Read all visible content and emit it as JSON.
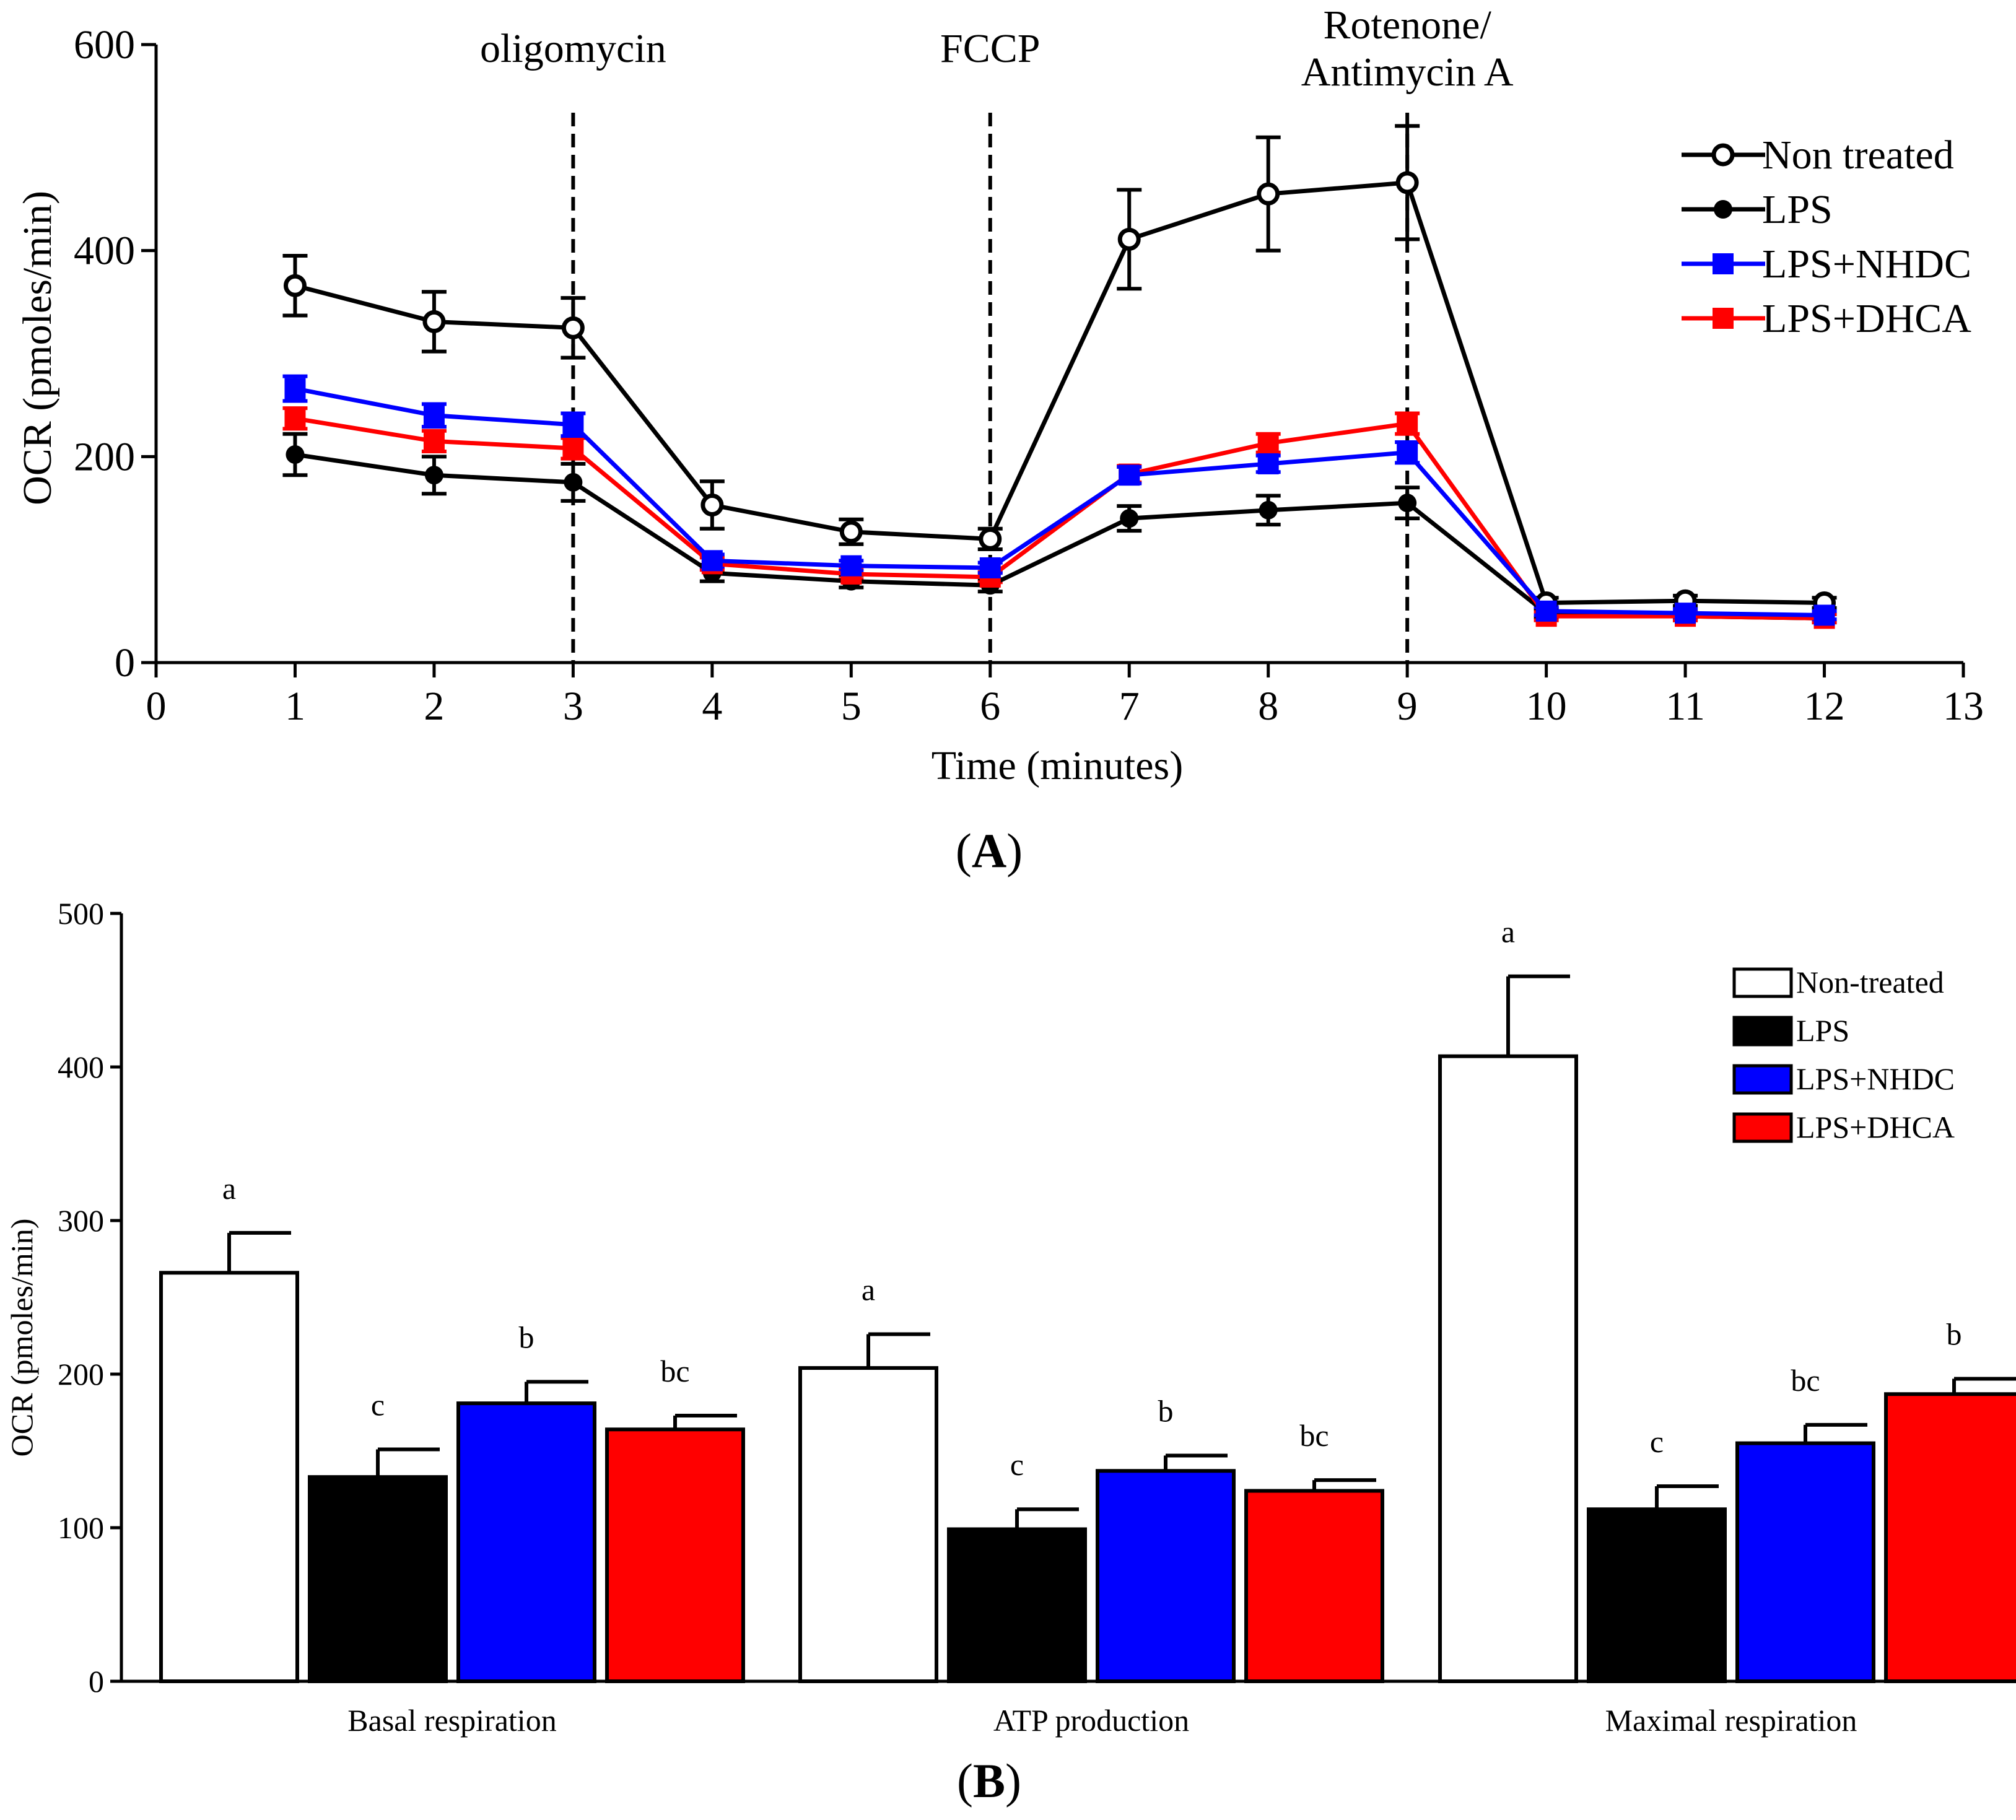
{
  "chart_data": [
    {
      "panel": "(A)",
      "panel_label_open": "(",
      "panel_label_letter": "A",
      "panel_label_close": ")",
      "type": "line",
      "xlabel": "Time (minutes)",
      "ylabel": "OCR (pmoles/min)",
      "xlim": [
        0,
        13
      ],
      "ylim": [
        0,
        600
      ],
      "x_ticks": [
        0,
        1,
        2,
        3,
        4,
        5,
        6,
        7,
        8,
        9,
        10,
        11,
        12,
        13
      ],
      "y_ticks": [
        0,
        200,
        400,
        600
      ],
      "legend_position": "top-right",
      "injections": [
        {
          "x": 3,
          "label_lines": [
            "oligomycin"
          ]
        },
        {
          "x": 6,
          "label_lines": [
            "FCCP"
          ]
        },
        {
          "x": 9,
          "label_lines": [
            "Rotenone/",
            "Antimycin A"
          ]
        }
      ],
      "x": [
        1,
        2,
        3,
        4,
        5,
        6,
        7,
        8,
        9,
        10,
        11,
        12
      ],
      "series": [
        {
          "name": "Non treated",
          "color": "#000000",
          "marker": "open-circle",
          "values": [
            366,
            331,
            325,
            153,
            127,
            120,
            411,
            455,
            466,
            58,
            60,
            58
          ],
          "errors": [
            29,
            29,
            29,
            23,
            12,
            10,
            48,
            55,
            55,
            5,
            5,
            5
          ]
        },
        {
          "name": "LPS",
          "color": "#000000",
          "marker": "filled-circle",
          "values": [
            202,
            182,
            175,
            87,
            79,
            75,
            140,
            148,
            155,
            48,
            45,
            43
          ],
          "errors": [
            20,
            18,
            18,
            8,
            6,
            6,
            12,
            14,
            15,
            4,
            4,
            4
          ]
        },
        {
          "name": "LPS+NHDC",
          "color": "#0000ff",
          "marker": "filled-square",
          "values": [
            266,
            240,
            231,
            99,
            94,
            92,
            182,
            193,
            204,
            50,
            48,
            46
          ],
          "errors": [
            12,
            11,
            11,
            6,
            5,
            5,
            8,
            8,
            10,
            4,
            4,
            4
          ]
        },
        {
          "name": "LPS+DHCA",
          "color": "#ff0000",
          "marker": "filled-square",
          "values": [
            237,
            215,
            208,
            96,
            86,
            83,
            183,
            213,
            232,
            45,
            45,
            43
          ],
          "errors": [
            10,
            10,
            10,
            6,
            5,
            5,
            8,
            9,
            10,
            4,
            4,
            4
          ]
        }
      ]
    },
    {
      "panel": "(B)",
      "panel_label_open": "(",
      "panel_label_letter": "B",
      "panel_label_close": ")",
      "type": "bar",
      "xlabel": "",
      "ylabel": "OCR (pmoles/min)",
      "ylim": [
        0,
        500
      ],
      "y_ticks": [
        0,
        100,
        200,
        300,
        400,
        500
      ],
      "legend_position": "top-right",
      "categories": [
        "Basal respiration",
        "ATP production",
        "Maximal respiration"
      ],
      "series": [
        {
          "name": "Non-treated",
          "color": "#ffffff",
          "values": [
            266,
            204,
            407
          ],
          "errors": [
            26,
            22,
            52
          ],
          "letters": [
            "a",
            "a",
            "a"
          ]
        },
        {
          "name": "LPS",
          "color": "#000000",
          "values": [
            133,
            99,
            112
          ],
          "errors": [
            18,
            13,
            15
          ],
          "letters": [
            "c",
            "c",
            "c"
          ]
        },
        {
          "name": "LPS+NHDC",
          "color": "#0000ff",
          "values": [
            181,
            137,
            155
          ],
          "errors": [
            14,
            10,
            12
          ],
          "letters": [
            "b",
            "b",
            "bc"
          ]
        },
        {
          "name": "LPS+DHCA",
          "color": "#ff0000",
          "values": [
            164,
            124,
            187
          ],
          "errors": [
            9,
            7,
            10
          ],
          "letters": [
            "bc",
            "bc",
            "b"
          ]
        }
      ]
    }
  ]
}
